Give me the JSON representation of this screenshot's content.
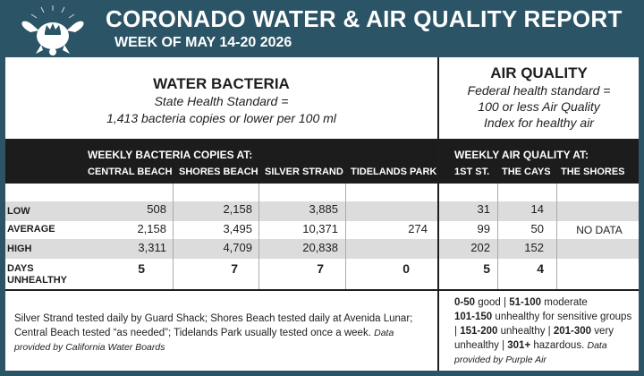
{
  "header": {
    "title": "CORONADO WATER & AIR QUALITY REPORT",
    "subtitle": "WEEK OF MAY 14-20 2026",
    "logo_icon": "turtle-crown-icon"
  },
  "water": {
    "title": "WATER BACTERIA",
    "standard_line1": "State Health Standard  =",
    "standard_line2": "1,413 bacteria copies or lower per 100 ml",
    "section_header": "WEEKLY BACTERIA COPIES AT:",
    "columns": [
      "CENTRAL BEACH",
      "SHORES BEACH",
      "SILVER STRAND",
      "TIDELANDS PARK"
    ],
    "rows": [
      {
        "label": "LOW",
        "values": [
          "508",
          "2,158",
          "3,885",
          ""
        ]
      },
      {
        "label": "AVERAGE",
        "values": [
          "2,158",
          "3,495",
          "10,371",
          "274"
        ]
      },
      {
        "label": "HIGH",
        "values": [
          "3,311",
          "4,709",
          "20,838",
          ""
        ]
      },
      {
        "label": "DAYS UNHEALTHY",
        "values": [
          "5",
          "7",
          "7",
          "0"
        ]
      }
    ],
    "footnote": "Silver Strand tested daily by Guard Shack; Shores Beach tested daily at Avenida Lunar; Central Beach tested “as needed”; Tidelands Park usually tested once a week.",
    "source": "Data provided by California Water Boards"
  },
  "air": {
    "title": "AIR QUALITY",
    "standard_line1": "Federal health standard =",
    "standard_line2": "100 or less Air Quality",
    "standard_line3": "Index for healthy air",
    "section_header": "WEEKLY AIR QUALITY AT:",
    "columns": [
      "1ST ST.",
      "THE CAYS",
      "THE SHORES"
    ],
    "rows": [
      {
        "label": "LOW",
        "values": [
          "31",
          "14"
        ]
      },
      {
        "label": "AVERAGE",
        "values": [
          "99",
          "50"
        ]
      },
      {
        "label": "HIGH",
        "values": [
          "202",
          "152"
        ]
      },
      {
        "label": "DAYS UNHEALTHY",
        "values": [
          "5",
          "4"
        ]
      }
    ],
    "no_data": "NO DATA",
    "legend": [
      {
        "range": "0-50",
        "text": "good"
      },
      {
        "range": "51-100",
        "text": "moderate"
      },
      {
        "range": "101-150",
        "text": "unhealthy for sensitive groups"
      },
      {
        "range": "151-200",
        "text": "unhealthy"
      },
      {
        "range": "201-300",
        "text": "very unhealthy"
      },
      {
        "range": "301+",
        "text": "hazardous."
      }
    ],
    "source": "Data provided by Purple Air"
  },
  "colors": {
    "frame": "#2b5466",
    "header_bar": "#1c1c1c",
    "row_shade": "#dcdcdc"
  }
}
